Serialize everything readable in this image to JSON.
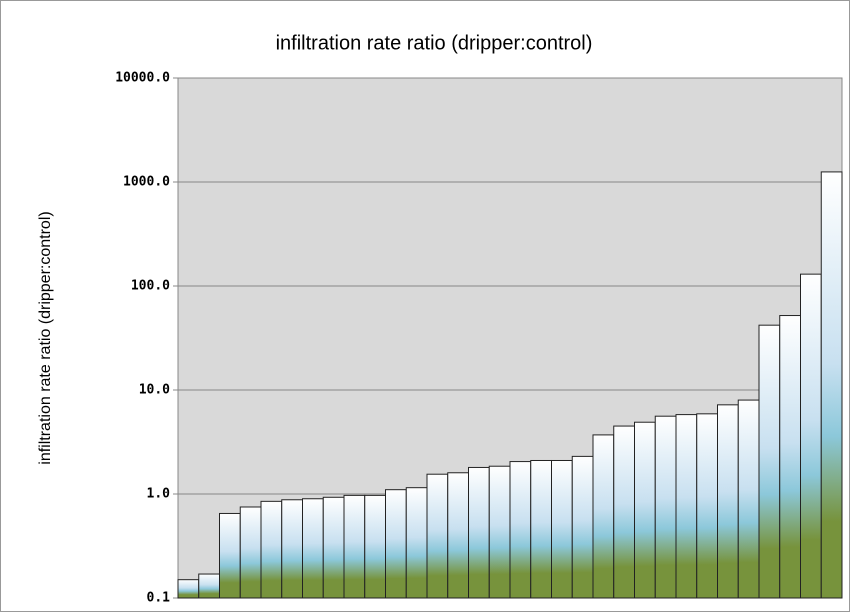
{
  "chart_data": {
    "type": "bar",
    "title": "infiltration rate ratio (dripper:control)",
    "y_label": "infiltration rate ratio (dripper:control)",
    "categories": [
      null,
      null,
      null,
      null,
      null,
      null,
      null,
      null,
      null,
      null,
      null,
      null,
      null,
      null,
      null,
      null,
      null,
      null,
      null,
      null,
      null,
      null,
      null,
      null,
      null,
      null,
      null,
      null,
      null,
      null,
      null,
      null
    ],
    "values": [
      0.15,
      0.17,
      0.65,
      0.75,
      0.85,
      0.88,
      0.9,
      0.93,
      0.97,
      0.97,
      1.1,
      1.15,
      1.55,
      1.6,
      1.8,
      1.85,
      2.05,
      2.1,
      2.1,
      2.3,
      3.7,
      4.5,
      4.9,
      5.6,
      5.8,
      5.9,
      7.2,
      8.0,
      42,
      52,
      130,
      1250
    ],
    "gradient": [
      "#ffffff",
      "#c8e0f0",
      "#8cc8da",
      "#77933c"
    ],
    "log_scale": true,
    "ylim": [
      0.1,
      10000
    ],
    "yticks": [
      0.1,
      {
        "value": 1,
        "label": "1.0"
      },
      {
        "value": 10,
        "label": "10.0"
      },
      {
        "value": 100,
        "label": "100.0"
      },
      {
        "value": 1000,
        "label": "1000.0"
      },
      {
        "value": 10000,
        "label": "10000.0"
      }
    ],
    "grid": true
  }
}
